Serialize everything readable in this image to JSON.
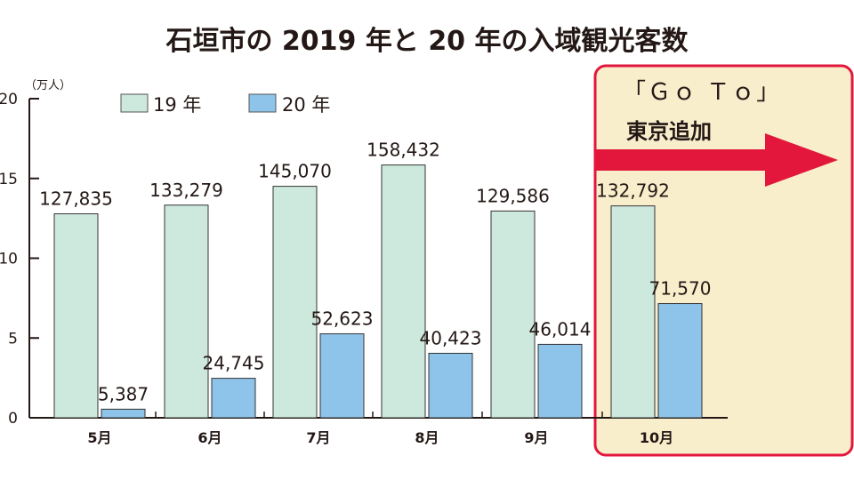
{
  "chart_data": {
    "type": "bar",
    "title": "石垣市の 2019 年と 20 年の入域観光客数",
    "ylabel": "（万人）",
    "ylim": [
      0,
      20
    ],
    "yticks": [
      "0",
      "5",
      "10",
      "15",
      "20"
    ],
    "categories": [
      "5月",
      "6月",
      "7月",
      "8月",
      "9月",
      "10月"
    ],
    "series": [
      {
        "name": "19 年",
        "color": "#cde8dc",
        "values": [
          127835,
          133279,
          145070,
          158432,
          129586,
          132792
        ],
        "labels": [
          "127,835",
          "133,279",
          "145,070",
          "158,432",
          "129,586",
          "132,792"
        ]
      },
      {
        "name": "20 年",
        "color": "#8ec4ea",
        "values": [
          5387,
          24745,
          52623,
          40423,
          46014,
          71570
        ],
        "labels": [
          "5,387",
          "24,745",
          "52,623",
          "40,423",
          "46,014",
          "71,570"
        ]
      }
    ],
    "legend_position": "top-left",
    "grid": false,
    "annotation": {
      "line1": "「Ｇｏ Ｔｏ」",
      "line2": "東京追加",
      "highlight_category": "10月",
      "highlight_fill": "#f8eecb",
      "border_color": "#e3173c",
      "arrow_color": "#e3173c"
    }
  }
}
